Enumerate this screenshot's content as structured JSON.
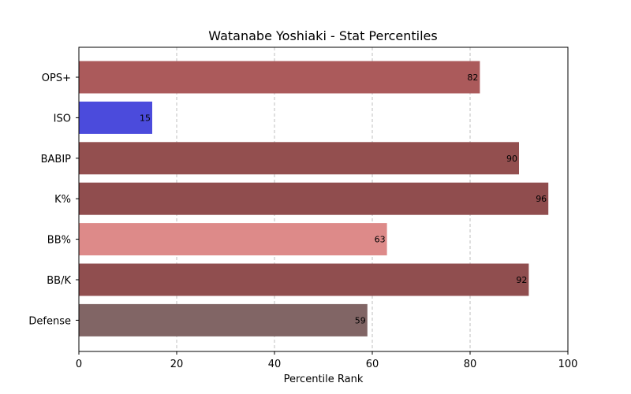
{
  "chart_data": {
    "type": "bar",
    "orientation": "horizontal",
    "title": "Watanabe Yoshiaki - Stat Percentiles",
    "xlabel": "Percentile Rank",
    "ylabel": "",
    "xlim": [
      0,
      100
    ],
    "xticks": [
      0,
      20,
      40,
      60,
      80,
      100
    ],
    "grid": "x-dashed",
    "categories": [
      "OPS+",
      "ISO",
      "BABIP",
      "K%",
      "BB%",
      "BB/K",
      "Defense"
    ],
    "values": [
      82,
      15,
      90,
      96,
      63,
      92,
      59
    ],
    "colors": [
      "#ab5a5b",
      "#4b4bdc",
      "#934f4f",
      "#904d4e",
      "#dd8a89",
      "#904e4f",
      "#816565"
    ]
  }
}
